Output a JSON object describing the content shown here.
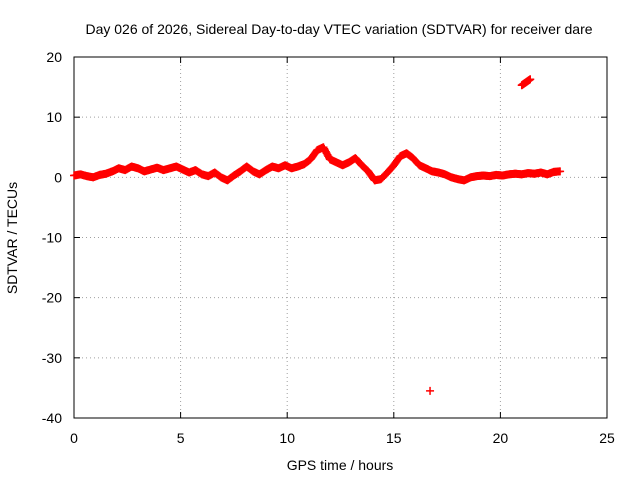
{
  "chart_data": {
    "type": "scatter",
    "title": "Day 026 of 2026, Sidereal Day-to-day VTEC variation (SDTVAR) for receiver dare",
    "xlabel": "GPS time / hours",
    "ylabel": "SDTVAR / TECUs",
    "xlim": [
      0,
      25
    ],
    "ylim": [
      -40,
      20
    ],
    "xticks": [
      0,
      5,
      10,
      15,
      20,
      25
    ],
    "yticks": [
      -40,
      -30,
      -20,
      -10,
      0,
      10,
      20
    ],
    "grid": true,
    "marker": "+",
    "color": "#ff0000",
    "series": [
      {
        "name": "SDTVAR",
        "x": [
          0.0,
          0.3,
          0.6,
          0.9,
          1.2,
          1.5,
          1.8,
          2.1,
          2.4,
          2.7,
          3.0,
          3.3,
          3.6,
          3.9,
          4.2,
          4.5,
          4.8,
          5.1,
          5.4,
          5.7,
          6.0,
          6.3,
          6.6,
          6.9,
          7.2,
          7.5,
          7.8,
          8.1,
          8.4,
          8.7,
          9.0,
          9.3,
          9.6,
          9.9,
          10.2,
          10.5,
          10.8,
          11.1,
          11.4,
          11.7,
          12.0,
          12.3,
          12.6,
          12.9,
          13.2,
          13.5,
          13.8,
          14.1,
          14.4,
          14.7,
          15.0,
          15.3,
          15.6,
          15.9,
          16.2,
          16.5,
          16.8,
          17.1,
          17.4,
          17.7,
          18.0,
          18.3,
          18.6,
          18.9,
          19.2,
          19.5,
          19.8,
          20.1,
          20.4,
          20.7,
          21.0,
          21.3,
          21.6,
          21.9,
          22.2,
          22.5,
          22.8
        ],
        "y": [
          0.3,
          0.5,
          0.2,
          0.0,
          0.4,
          0.6,
          1.0,
          1.5,
          1.2,
          1.8,
          1.5,
          1.0,
          1.3,
          1.6,
          1.2,
          1.5,
          1.8,
          1.3,
          0.8,
          1.2,
          0.5,
          0.2,
          0.8,
          0.0,
          -0.5,
          0.3,
          1.0,
          1.8,
          1.0,
          0.5,
          1.2,
          1.8,
          1.5,
          2.0,
          1.5,
          1.8,
          2.2,
          3.0,
          4.5,
          5.0,
          3.0,
          2.5,
          2.0,
          2.5,
          3.2,
          2.0,
          1.0,
          -0.5,
          -0.3,
          0.8,
          2.0,
          3.5,
          4.0,
          3.2,
          2.0,
          1.5,
          1.0,
          0.8,
          0.5,
          0.0,
          -0.3,
          -0.5,
          0.0,
          0.2,
          0.3,
          0.2,
          0.4,
          0.3,
          0.5,
          0.6,
          0.5,
          0.7,
          0.6,
          0.8,
          0.5,
          0.9,
          1.0
        ]
      },
      {
        "name": "SDTVAR-upper-outliers",
        "x": [
          21.0,
          21.2,
          21.4
        ],
        "y": [
          15.3,
          15.8,
          16.3
        ]
      },
      {
        "name": "SDTVAR-lower-outlier",
        "x": [
          16.7
        ],
        "y": [
          -35.5
        ]
      }
    ]
  }
}
